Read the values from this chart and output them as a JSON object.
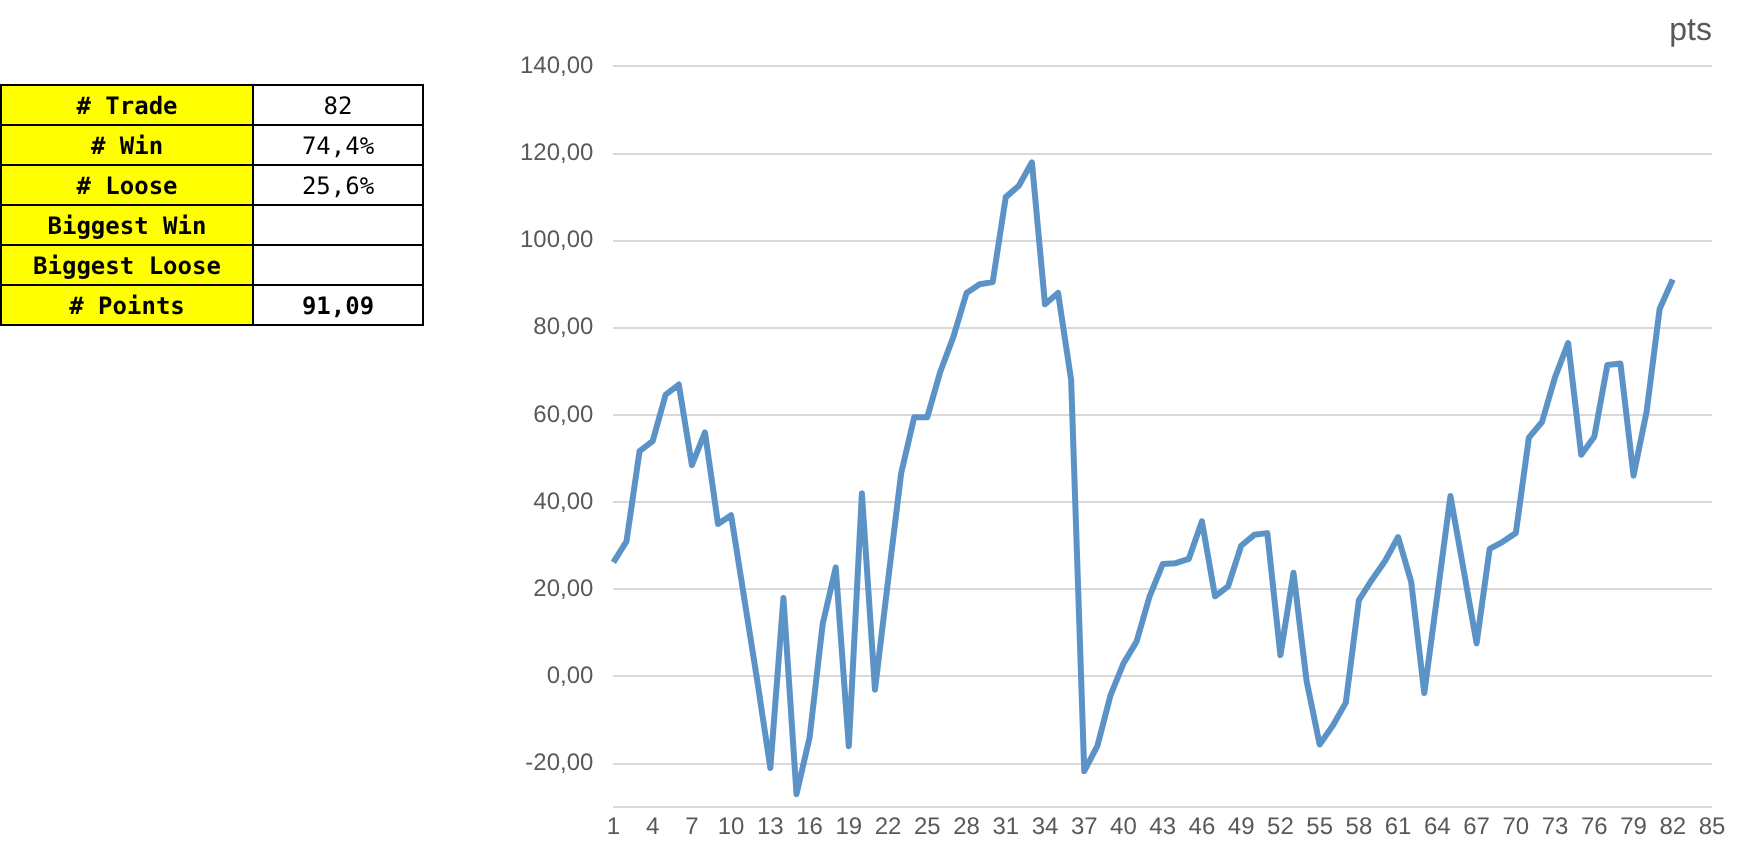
{
  "chart_data": [
    {
      "type": "other",
      "categories": [
        "# Trade",
        "# Win",
        "# Loose",
        "Biggest Win",
        "Biggest Loose",
        "# Points"
      ],
      "value_labels": [
        "82",
        "74,4%",
        "25,6%",
        null,
        null,
        "91,09"
      ]
    },
    {
      "type": "line",
      "title": "pts",
      "categories": [
        "1",
        null,
        null,
        "4",
        null,
        null,
        "7",
        null,
        null,
        "10",
        null,
        null,
        "13",
        null,
        null,
        "16",
        null,
        null,
        "19",
        null,
        null,
        "22",
        null,
        null,
        "25",
        null,
        null,
        "28",
        null,
        null,
        "31",
        null,
        null,
        "34",
        null,
        null,
        "37",
        null,
        null,
        "40",
        null,
        null,
        "43",
        null,
        null,
        "46",
        null,
        null,
        "49",
        null,
        null,
        "52",
        null,
        null,
        "55",
        null,
        null,
        "58",
        null,
        null,
        "61",
        null,
        null,
        "64",
        null,
        null,
        "67",
        null,
        null,
        "70",
        null,
        null,
        "73",
        null,
        null,
        "76",
        null,
        null,
        "79",
        null,
        null,
        "82",
        null,
        null,
        "85"
      ],
      "series": [
        {
          "color": "#5b93c6",
          "values": [
            26.2,
            31,
            51.7,
            54,
            64.7,
            67,
            48.5,
            56,
            35,
            37,
            18,
            -1,
            -21,
            18,
            -27,
            -14,
            12,
            25,
            -16,
            42,
            -3,
            22,
            46.6,
            59.5,
            59.5,
            70,
            78,
            88,
            90,
            90.5,
            110,
            112.6,
            118,
            85.4,
            88,
            68,
            -21.7,
            -16,
            -4.4,
            3,
            8,
            18.4,
            25.8,
            26,
            27,
            35.6,
            18.4,
            20.7,
            30,
            32.5,
            32.9,
            4.9,
            23.8,
            -1,
            -15.6,
            -11.3,
            -6,
            17.5,
            22.2,
            26.5,
            32,
            21.7,
            -3.8,
            18.7,
            41.4,
            24.6,
            7.6,
            29.3,
            30.9,
            32.9,
            54.8,
            58.4,
            68.7,
            76.5,
            50.9,
            55,
            71.5,
            71.8,
            46.1,
            60.8,
            84.4,
            91.1,
            null,
            null,
            null
          ]
        }
      ],
      "ylim": [
        -30,
        140
      ],
      "yticks": [
        {
          "value": -30,
          "label": null
        },
        {
          "value": -20,
          "label": "-20,00"
        },
        {
          "value": 0,
          "label": "0,00"
        },
        {
          "value": 20,
          "label": "20,00"
        },
        {
          "value": 40,
          "label": "40,00"
        },
        {
          "value": 60,
          "label": "60,00"
        },
        {
          "value": 80,
          "label": "80,00"
        },
        {
          "value": 100,
          "label": "100,00"
        },
        {
          "value": 120,
          "label": "120,00"
        },
        {
          "value": 140,
          "label": "140,00"
        }
      ],
      "grid": "y",
      "legend": false,
      "marker": "none",
      "line_style": "solid"
    }
  ]
}
